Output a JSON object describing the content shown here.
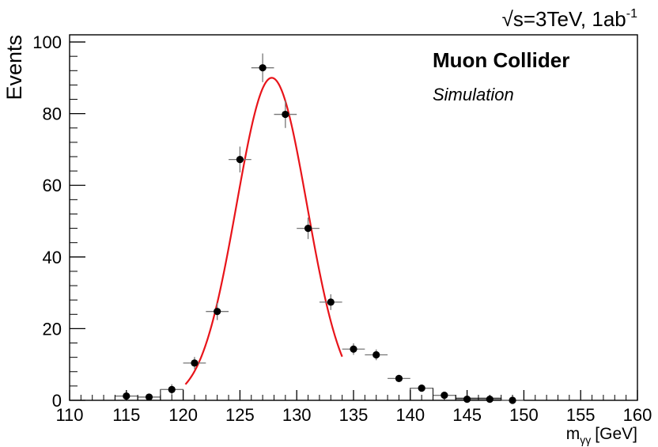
{
  "chart_data": {
    "type": "scatter",
    "energy_label": "s=3TeV, 1ab",
    "energy_superscript": "-1",
    "experiment": "Muon Collider",
    "subtitle": "Simulation",
    "ylabel": "Events",
    "xlabel_main": "m",
    "xlabel_sub": "γγ",
    "xlabel_unit": "[GeV]",
    "xlim": [
      110,
      160
    ],
    "ylim": [
      0,
      102
    ],
    "x_ticks": [
      "110",
      "115",
      "120",
      "125",
      "130",
      "135",
      "140",
      "145",
      "150",
      "155",
      "160"
    ],
    "y_ticks": [
      "0",
      "20",
      "40",
      "60",
      "80",
      "100"
    ],
    "bin_width": 2,
    "points": [
      {
        "x": 115,
        "y": 1.2,
        "err": 1.1
      },
      {
        "x": 117,
        "y": 0.9,
        "err": 0.9
      },
      {
        "x": 119,
        "y": 3.0,
        "err": 1.5
      },
      {
        "x": 121,
        "y": 10.4,
        "err": 1.7
      },
      {
        "x": 123,
        "y": 24.8,
        "err": 2.4
      },
      {
        "x": 125,
        "y": 67.2,
        "err": 3.6
      },
      {
        "x": 127,
        "y": 92.8,
        "err": 4.0
      },
      {
        "x": 129,
        "y": 79.8,
        "err": 3.8
      },
      {
        "x": 131,
        "y": 48.0,
        "err": 3.0
      },
      {
        "x": 133,
        "y": 27.4,
        "err": 2.2
      },
      {
        "x": 135,
        "y": 14.3,
        "err": 1.6
      },
      {
        "x": 137,
        "y": 12.7,
        "err": 1.5
      },
      {
        "x": 139,
        "y": 6.1,
        "err": 1.0
      },
      {
        "x": 141,
        "y": 3.4,
        "err": 0.8
      },
      {
        "x": 143,
        "y": 1.4,
        "err": 0.6
      },
      {
        "x": 145,
        "y": 0.3,
        "err": 0.3
      },
      {
        "x": 147,
        "y": 0.3,
        "err": 0.3
      },
      {
        "x": 149,
        "y": 0.0,
        "err": 0.2
      }
    ],
    "histogram": [
      {
        "x": 115,
        "y": 1.2
      },
      {
        "x": 117,
        "y": 0.9
      },
      {
        "x": 119,
        "y": 3.0
      },
      {
        "x": 141,
        "y": 3.4
      },
      {
        "x": 143,
        "y": 1.4
      },
      {
        "x": 145,
        "y": 0.6
      },
      {
        "x": 147,
        "y": 0.6
      },
      {
        "x": 149,
        "y": 0.0
      }
    ],
    "fit": {
      "type": "gaussian",
      "amplitude": 90,
      "mean": 127.8,
      "sigma": 3.1,
      "x_range": [
        120.2,
        134.0
      ],
      "color": "#e8141a"
    },
    "marker_color": "#000000",
    "error_color": "#777777"
  }
}
